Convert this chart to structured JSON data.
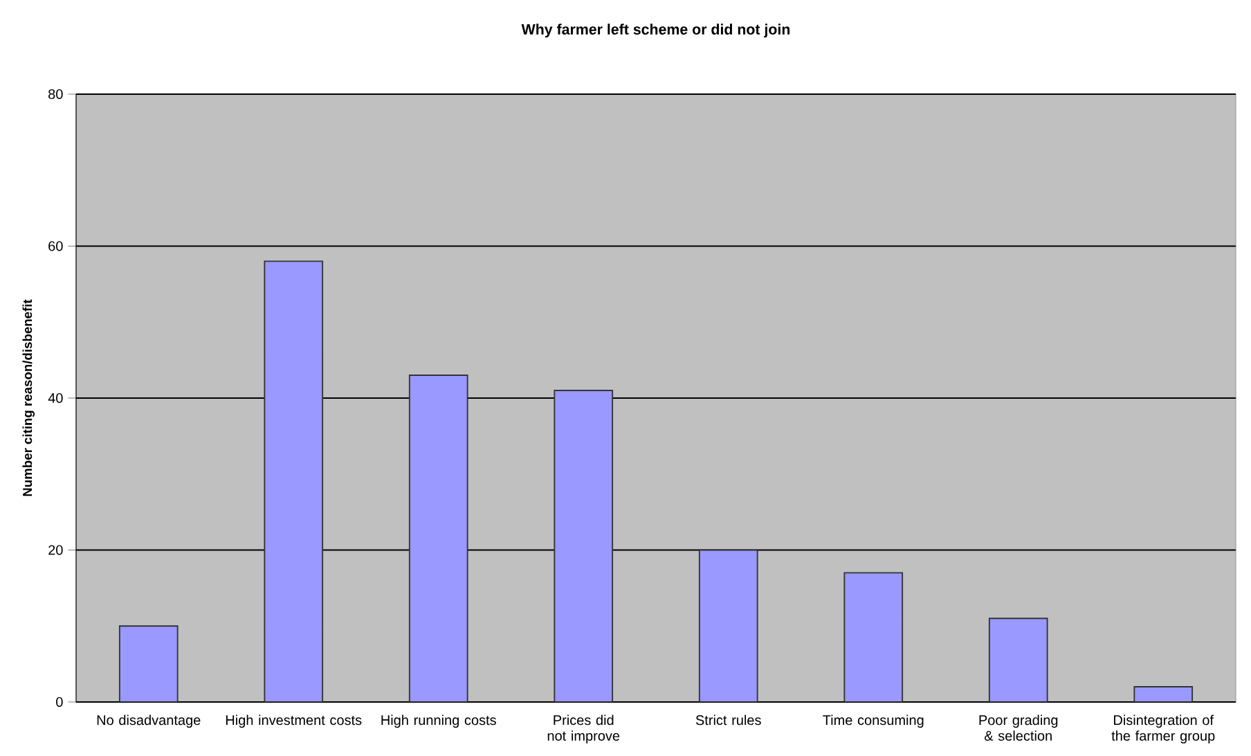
{
  "chart_data": {
    "type": "bar",
    "title": "Why farmer left scheme or did not join",
    "ylabel": "Number citing reason/disbenefit",
    "categories": [
      "No disadvantage",
      "High investment costs",
      "High running costs",
      "Prices did not improve",
      "Strict rules",
      "Time consuming",
      "Poor grading & selection",
      "Disintegration of the farmer group"
    ],
    "values": [
      10,
      58,
      43,
      41,
      20,
      17,
      11,
      2
    ],
    "color": "#9999ff",
    "ylim": [
      0,
      80
    ],
    "yticks": [
      0,
      20,
      40,
      60,
      80
    ],
    "grid": "y"
  }
}
